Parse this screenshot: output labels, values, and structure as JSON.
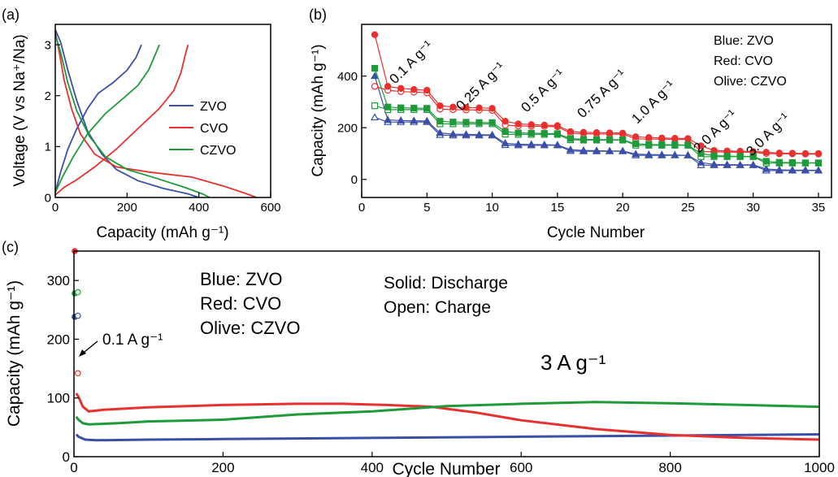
{
  "colors": {
    "blue": "#3a4fa8",
    "red": "#e8312f",
    "olive": "#1f9a3a"
  },
  "panel_a": {
    "panel_label": "(a)",
    "legend": [
      "ZVO",
      "CVO",
      "CZVO"
    ]
  },
  "panel_b": {
    "panel_label": "(b)",
    "legend_text": [
      "Blue: ZVO",
      "Red: CVO",
      "Olive: CZVO"
    ],
    "rate_annotations": [
      "0.1 A g⁻¹",
      "0.25 A g⁻¹",
      "0.5 A g⁻¹",
      "0.75 A g⁻¹",
      "1.0 A g⁻¹",
      "2.0 A g⁻¹",
      "3.0 A g⁻¹"
    ]
  },
  "panel_c": {
    "panel_label": "(c)",
    "legend_text": [
      "Blue: ZVO",
      "Red: CVO",
      "Olive: CZVO"
    ],
    "style_notes": [
      "Solid:  Discharge",
      "Open: Charge"
    ],
    "annot_low": "0.1 A g⁻¹",
    "annot_high": "3 A g⁻¹"
  },
  "chart_data": [
    {
      "type": "line",
      "xlabel": "Capacity (mAh g⁻¹)",
      "ylabel": "Voltage (V vs Na⁺/Na)",
      "xlim": [
        0,
        600
      ],
      "ylim": [
        0,
        3.4
      ],
      "xticks": [
        0,
        200,
        400,
        600
      ],
      "yticks": [
        0,
        1,
        2,
        3
      ],
      "series": [
        {
          "name": "ZVO",
          "color": "blue",
          "discharge": [
            [
              0,
              3.3
            ],
            [
              15,
              3.05
            ],
            [
              35,
              2.5
            ],
            [
              60,
              1.9
            ],
            [
              90,
              1.3
            ],
            [
              130,
              0.85
            ],
            [
              170,
              0.55
            ],
            [
              230,
              0.33
            ],
            [
              300,
              0.18
            ],
            [
              370,
              0.07
            ],
            [
              400,
              0.0
            ]
          ],
          "charge": [
            [
              0,
              0.1
            ],
            [
              15,
              0.5
            ],
            [
              35,
              0.95
            ],
            [
              60,
              1.35
            ],
            [
              90,
              1.75
            ],
            [
              120,
              2.05
            ],
            [
              160,
              2.25
            ],
            [
              200,
              2.5
            ],
            [
              225,
              2.75
            ],
            [
              240,
              3.0
            ]
          ]
        },
        {
          "name": "CVO",
          "color": "red",
          "discharge": [
            [
              0,
              3.25
            ],
            [
              10,
              2.9
            ],
            [
              25,
              2.3
            ],
            [
              45,
              1.75
            ],
            [
              70,
              1.25
            ],
            [
              110,
              0.85
            ],
            [
              170,
              0.6
            ],
            [
              260,
              0.5
            ],
            [
              380,
              0.4
            ],
            [
              470,
              0.22
            ],
            [
              530,
              0.08
            ],
            [
              560,
              0.0
            ]
          ],
          "charge": [
            [
              0,
              0.05
            ],
            [
              25,
              0.2
            ],
            [
              60,
              0.35
            ],
            [
              110,
              0.6
            ],
            [
              170,
              0.95
            ],
            [
              230,
              1.35
            ],
            [
              290,
              1.75
            ],
            [
              330,
              2.1
            ],
            [
              350,
              2.45
            ],
            [
              362,
              2.8
            ],
            [
              370,
              3.0
            ]
          ]
        },
        {
          "name": "CZVO",
          "color": "olive",
          "discharge": [
            [
              0,
              3.2
            ],
            [
              15,
              2.85
            ],
            [
              35,
              2.25
            ],
            [
              60,
              1.7
            ],
            [
              95,
              1.2
            ],
            [
              140,
              0.8
            ],
            [
              200,
              0.55
            ],
            [
              280,
              0.38
            ],
            [
              360,
              0.2
            ],
            [
              410,
              0.07
            ],
            [
              430,
              0.0
            ]
          ],
          "charge": [
            [
              0,
              0.1
            ],
            [
              20,
              0.4
            ],
            [
              50,
              0.8
            ],
            [
              90,
              1.25
            ],
            [
              140,
              1.65
            ],
            [
              190,
              1.95
            ],
            [
              230,
              2.2
            ],
            [
              260,
              2.5
            ],
            [
              278,
              2.8
            ],
            [
              290,
              3.0
            ]
          ]
        }
      ]
    },
    {
      "type": "scatter",
      "xlabel": "Cycle Number",
      "ylabel": "Capacity (mAh g⁻¹)",
      "xlim": [
        0,
        36
      ],
      "ylim": [
        -70,
        600
      ],
      "xticks": [
        0,
        5,
        10,
        15,
        20,
        25,
        30,
        35
      ],
      "yticks": [
        0,
        200,
        400
      ],
      "series": [
        {
          "name": "ZVO",
          "color": "blue",
          "marker": "triangle",
          "discharge": [
            400,
            230,
            228,
            227,
            226,
            180,
            175,
            174,
            173,
            172,
            140,
            136,
            135,
            134,
            133,
            115,
            112,
            111,
            110,
            110,
            98,
            96,
            95,
            94,
            93,
            65,
            58,
            57,
            56,
            56,
            40,
            37,
            36,
            36,
            35
          ],
          "charge": [
            240,
            222,
            222,
            222,
            222,
            172,
            170,
            170,
            170,
            170,
            133,
            132,
            132,
            132,
            132,
            110,
            109,
            109,
            109,
            109,
            93,
            93,
            93,
            93,
            93,
            55,
            55,
            55,
            55,
            55,
            34,
            34,
            34,
            34,
            34
          ]
        },
        {
          "name": "CVO",
          "color": "red",
          "marker": "circle",
          "discharge": [
            560,
            360,
            352,
            348,
            345,
            285,
            280,
            278,
            277,
            275,
            225,
            215,
            212,
            210,
            208,
            185,
            182,
            181,
            180,
            179,
            165,
            162,
            160,
            159,
            158,
            130,
            112,
            110,
            109,
            108,
            105,
            102,
            101,
            100,
            100
          ],
          "charge": [
            360,
            345,
            340,
            338,
            335,
            272,
            270,
            269,
            268,
            267,
            210,
            207,
            206,
            205,
            204,
            178,
            177,
            176,
            175,
            175,
            157,
            156,
            156,
            155,
            155,
            108,
            106,
            106,
            105,
            105,
            100,
            99,
            99,
            98,
            98
          ]
        },
        {
          "name": "CZVO",
          "color": "olive",
          "marker": "square",
          "discharge": [
            430,
            280,
            277,
            276,
            275,
            225,
            222,
            221,
            220,
            220,
            185,
            180,
            179,
            178,
            177,
            158,
            155,
            154,
            154,
            153,
            138,
            135,
            134,
            134,
            133,
            100,
            92,
            90,
            89,
            89,
            70,
            66,
            65,
            64,
            64
          ],
          "charge": [
            285,
            270,
            270,
            270,
            270,
            215,
            215,
            215,
            215,
            215,
            175,
            174,
            174,
            174,
            174,
            153,
            152,
            152,
            152,
            152,
            132,
            132,
            132,
            132,
            132,
            88,
            88,
            88,
            88,
            88,
            63,
            63,
            63,
            63,
            63
          ]
        }
      ]
    },
    {
      "type": "line",
      "xlabel": "Cycle Number",
      "ylabel": "Capacity (mAh g⁻¹)",
      "xlim": [
        0,
        1000
      ],
      "ylim": [
        0,
        350
      ],
      "xticks": [
        0,
        200,
        400,
        600,
        800,
        1000
      ],
      "yticks": [
        0,
        100,
        200,
        300
      ],
      "series": [
        {
          "name": "ZVO",
          "color": "blue",
          "initial": [
            {
              "cycle": 1,
              "value": 238
            },
            {
              "cycle": 2,
              "value": 240
            }
          ],
          "points": [
            [
              3,
              38
            ],
            [
              6,
              34
            ],
            [
              15,
              29
            ],
            [
              30,
              28
            ],
            [
              100,
              29
            ],
            [
              200,
              30
            ],
            [
              400,
              32
            ],
            [
              600,
              34
            ],
            [
              800,
              36
            ],
            [
              1000,
              38
            ]
          ]
        },
        {
          "name": "CVO",
          "color": "red",
          "initial": [
            {
              "cycle": 1,
              "value": 350
            },
            {
              "cycle": 2,
              "value": 142
            }
          ],
          "points": [
            [
              3,
              108
            ],
            [
              6,
              102
            ],
            [
              12,
              85
            ],
            [
              20,
              77
            ],
            [
              40,
              80
            ],
            [
              100,
              84
            ],
            [
              200,
              88
            ],
            [
              300,
              90
            ],
            [
              360,
              90
            ],
            [
              420,
              88
            ],
            [
              480,
              85
            ],
            [
              540,
              75
            ],
            [
              600,
              62
            ],
            [
              700,
              47
            ],
            [
              800,
              37
            ],
            [
              900,
              32
            ],
            [
              1000,
              29
            ]
          ]
        },
        {
          "name": "CZVO",
          "color": "olive",
          "initial": [
            {
              "cycle": 1,
              "value": 278
            },
            {
              "cycle": 2,
              "value": 280
            }
          ],
          "points": [
            [
              3,
              68
            ],
            [
              6,
              63
            ],
            [
              12,
              57
            ],
            [
              20,
              55
            ],
            [
              60,
              57
            ],
            [
              100,
              60
            ],
            [
              200,
              63
            ],
            [
              300,
              72
            ],
            [
              400,
              77
            ],
            [
              500,
              86
            ],
            [
              600,
              90
            ],
            [
              700,
              93
            ],
            [
              800,
              91
            ],
            [
              900,
              88
            ],
            [
              1000,
              85
            ]
          ]
        }
      ]
    }
  ]
}
